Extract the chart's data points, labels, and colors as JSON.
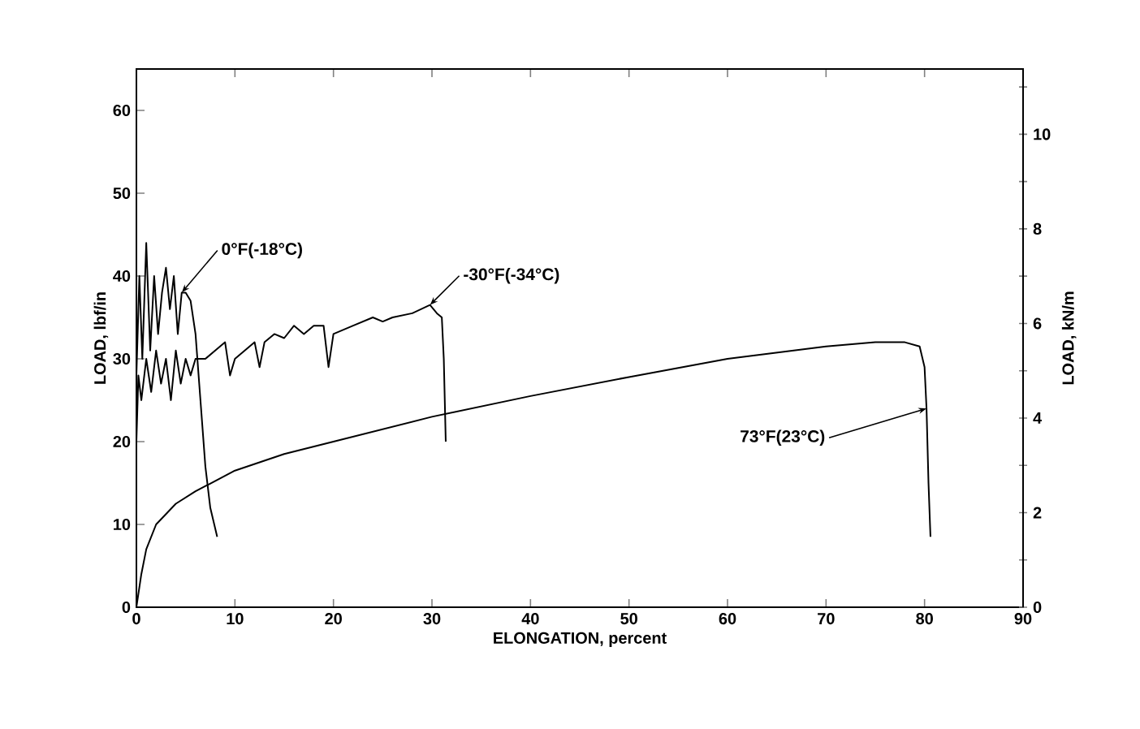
{
  "chart_data": {
    "type": "line",
    "xlabel": "ELONGATION, percent",
    "ylabel": "LOAD, lbf/in",
    "y2label": "LOAD, kN/m",
    "xlim": [
      0,
      90
    ],
    "ylim": [
      0,
      65
    ],
    "y2lim": [
      0,
      11.38
    ],
    "xticks": [
      0,
      10,
      20,
      30,
      40,
      50,
      60,
      70,
      80,
      90
    ],
    "yticks": [
      0,
      10,
      20,
      30,
      40,
      50,
      60
    ],
    "y2ticks": [
      0,
      {
        "value": 1,
        "label": null
      },
      2,
      {
        "value": 3,
        "label": null
      },
      4,
      {
        "value": 5,
        "label": null
      },
      6,
      {
        "value": 7,
        "label": null
      },
      8,
      {
        "value": 9,
        "label": null
      },
      10,
      {
        "value": 11,
        "label": null
      }
    ],
    "grid": false,
    "legend": false,
    "marker": "none",
    "line_style": "solid",
    "series": [
      {
        "color": "#000000",
        "x": [
          0,
          0.3,
          0.6,
          1,
          1.4,
          1.8,
          2.2,
          2.6,
          3,
          3.4,
          3.8,
          4.2,
          4.6,
          5,
          5.5,
          6,
          6.5,
          7,
          7.5,
          8.2
        ],
        "values": [
          28,
          40,
          30,
          44,
          31,
          40,
          33,
          38,
          41,
          36,
          40,
          33,
          38,
          38,
          37,
          33,
          25,
          17,
          12,
          8.5
        ]
      },
      {
        "color": "#000000",
        "x": [
          0,
          0.2,
          0.5,
          1,
          1.5,
          2,
          2.5,
          3,
          3.5,
          4,
          4.5,
          5,
          5.5,
          6,
          7,
          8,
          9,
          9.5,
          10,
          11,
          12,
          12.5,
          13,
          14,
          15,
          16,
          17,
          18,
          19,
          19.5,
          20,
          22,
          24,
          25,
          26,
          28,
          29.8,
          30.5,
          31,
          31.2,
          31.4
        ],
        "values": [
          20,
          28,
          25,
          30,
          26,
          31,
          27,
          30,
          25,
          31,
          27,
          30,
          28,
          30,
          30,
          31,
          32,
          28,
          30,
          31,
          32,
          29,
          32,
          33,
          32.5,
          34,
          33,
          34,
          34,
          29,
          33,
          34,
          35,
          34.5,
          35,
          35.5,
          36.5,
          35.5,
          35,
          30,
          20
        ]
      },
      {
        "color": "#000000",
        "x": [
          0,
          0.5,
          1,
          2,
          4,
          6,
          10,
          15,
          20,
          30,
          40,
          50,
          60,
          70,
          75,
          78,
          79.5,
          80,
          80.2,
          80.4,
          80.6
        ],
        "values": [
          0,
          4,
          7,
          10,
          12.5,
          14,
          16.5,
          18.5,
          20,
          23,
          25.5,
          27.8,
          30,
          31.5,
          32,
          32,
          31.5,
          29,
          24,
          15,
          8.5
        ]
      }
    ],
    "annotations": [
      {
        "text": "0°F(-18°C)",
        "x": 4.6,
        "y": 38
      },
      {
        "text": "-30°F(-34°C)",
        "x": 29.8,
        "y": 36.5
      },
      {
        "text": "73°F(23°C)",
        "x": 80.2,
        "y": 24
      }
    ]
  }
}
